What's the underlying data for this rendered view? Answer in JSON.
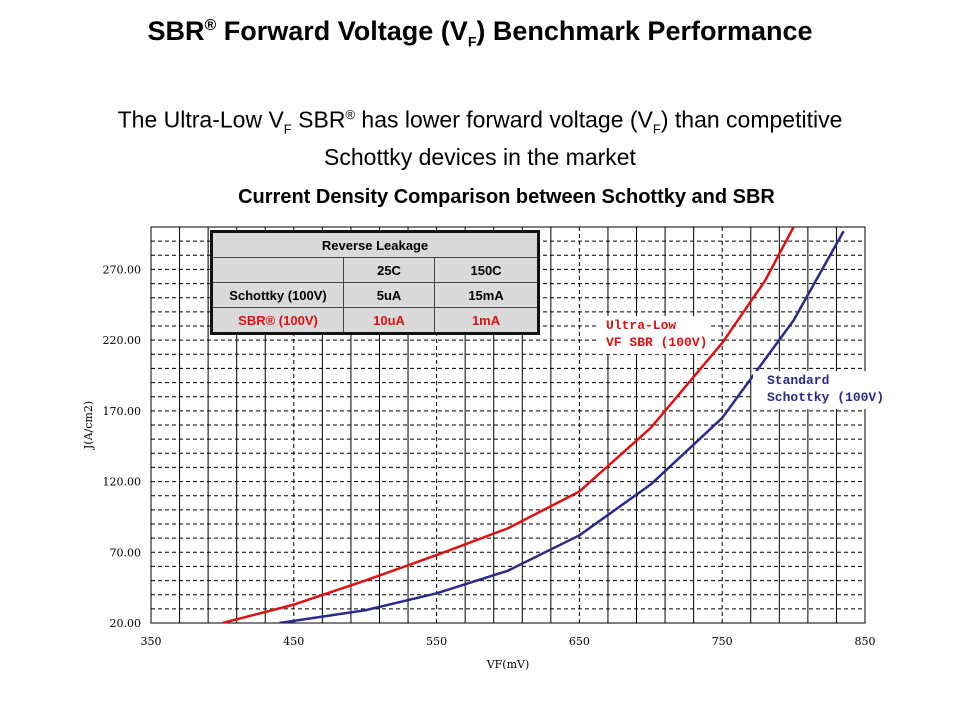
{
  "title": {
    "pre": "SBR",
    "reg": "®",
    "mid": " Forward Voltage (V",
    "sub": "F",
    "post": ") Benchmark Performance"
  },
  "subtitle": {
    "l1a": "The Ultra-Low V",
    "l1sub": "F",
    "l1b": " SBR",
    "l1reg": "®",
    "l1c": " has lower forward voltage (V",
    "l1sub2": "F",
    "l1d": ") than competitive",
    "l2": "Schottky devices in the market"
  },
  "table": {
    "header": "Reverse Leakage",
    "cols": [
      "",
      "25C",
      "150C"
    ],
    "rows": [
      [
        "Schottky (100V)",
        "5uA",
        "15mA"
      ],
      [
        "SBR® (100V)",
        "10uA",
        "1mA"
      ]
    ]
  },
  "chart_data": {
    "type": "line",
    "title": "Current Density Comparison between Schottky and SBR",
    "xlabel": "VF(mV)",
    "ylabel": "J(A/cm2)",
    "xlim": [
      350,
      850
    ],
    "ylim": [
      20,
      300
    ],
    "xticks": [
      "350",
      "450",
      "550",
      "650",
      "750",
      "850"
    ],
    "yticks": [
      "20.00",
      "70.00",
      "120.00",
      "170.00",
      "220.00",
      "270.00"
    ],
    "grid": true,
    "series": [
      {
        "name": "Ultra-Low VF SBR (100V)",
        "color": "#e01010",
        "x": [
          400,
          450,
          500,
          550,
          600,
          650,
          700,
          750,
          780,
          800
        ],
        "y": [
          20,
          33,
          50,
          68,
          87,
          113,
          158,
          218,
          262,
          300
        ]
      },
      {
        "name": "Standard Schottky (100V)",
        "color": "#2a2a8c",
        "x": [
          440,
          500,
          550,
          600,
          650,
          700,
          750,
          800,
          835
        ],
        "y": [
          20,
          29,
          41,
          57,
          82,
          118,
          165,
          234,
          297
        ]
      }
    ],
    "annotations": [
      [
        "Ultra-Low",
        "VF SBR (100V)"
      ],
      [
        "Standard",
        "Schottky (100V)"
      ]
    ]
  }
}
